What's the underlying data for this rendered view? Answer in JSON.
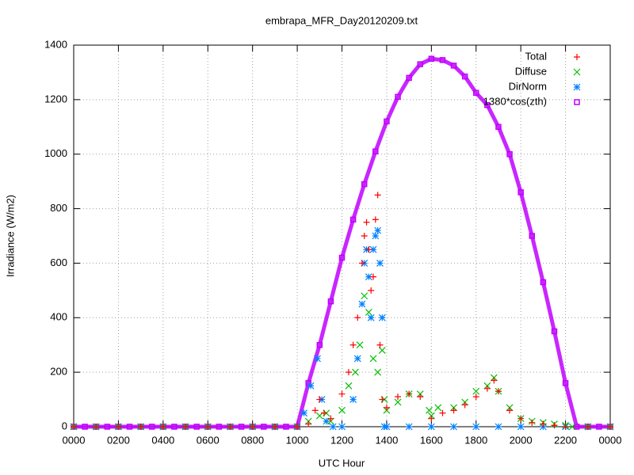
{
  "chart_data": {
    "type": "scatter",
    "title": "embrapa_MFR_Day20120209.txt",
    "xlabel": "UTC Hour",
    "ylabel": "Irradiance (W/m2)",
    "xlim": [
      0,
      24
    ],
    "ylim": [
      0,
      1400
    ],
    "xticks": [
      {
        "value": 0,
        "label": "0000"
      },
      {
        "value": 2,
        "label": "0200"
      },
      {
        "value": 4,
        "label": "0400"
      },
      {
        "value": 6,
        "label": "0600"
      },
      {
        "value": 8,
        "label": "0800"
      },
      {
        "value": 10,
        "label": "1000"
      },
      {
        "value": 12,
        "label": "1200"
      },
      {
        "value": 14,
        "label": "1400"
      },
      {
        "value": 16,
        "label": "1600"
      },
      {
        "value": 18,
        "label": "1800"
      },
      {
        "value": 20,
        "label": "2000"
      },
      {
        "value": 22,
        "label": "2200"
      },
      {
        "value": 24,
        "label": "0000"
      }
    ],
    "yticks": [
      0,
      200,
      400,
      600,
      800,
      1000,
      1200,
      1400
    ],
    "grid": true,
    "legend": "top-right",
    "series": [
      {
        "name": "Total",
        "color": "#ff0000",
        "marker": "plus",
        "x": [
          0,
          1,
          2,
          3,
          4,
          5,
          6,
          7,
          8,
          9,
          10,
          10.5,
          10.8,
          11,
          11.2,
          11.5,
          12,
          12.3,
          12.5,
          12.7,
          12.9,
          13.0,
          13.1,
          13.2,
          13.3,
          13.4,
          13.5,
          13.6,
          13.7,
          13.8,
          14,
          14.5,
          15,
          15.5,
          16,
          16.5,
          17,
          17.5,
          18,
          18.5,
          18.8,
          19,
          19.5,
          20,
          20.5,
          21,
          21.5,
          22,
          23,
          24
        ],
        "values": [
          0,
          0,
          0,
          0,
          0,
          0,
          0,
          0,
          0,
          0,
          0,
          10,
          60,
          100,
          50,
          30,
          120,
          200,
          300,
          400,
          600,
          700,
          750,
          650,
          500,
          550,
          760,
          850,
          300,
          100,
          70,
          110,
          120,
          110,
          30,
          50,
          60,
          80,
          110,
          140,
          170,
          130,
          60,
          30,
          15,
          10,
          5,
          0,
          0,
          0
        ]
      },
      {
        "name": "Diffuse",
        "color": "#00c000",
        "marker": "cross",
        "x": [
          0,
          1,
          2,
          3,
          4,
          5,
          6,
          7,
          8,
          9,
          10,
          10.5,
          11,
          11.3,
          11.5,
          12,
          12.3,
          12.6,
          12.8,
          13.0,
          13.2,
          13.4,
          13.6,
          13.8,
          13.9,
          14,
          14.5,
          15,
          15.5,
          15.9,
          16,
          16.3,
          17,
          17.5,
          18,
          18.5,
          18.8,
          19,
          19.5,
          20,
          20.5,
          21,
          21.5,
          22,
          22.3,
          23,
          24
        ],
        "values": [
          0,
          0,
          0,
          0,
          0,
          0,
          0,
          0,
          0,
          0,
          0,
          20,
          40,
          50,
          20,
          60,
          150,
          200,
          300,
          480,
          420,
          250,
          200,
          280,
          100,
          60,
          90,
          120,
          120,
          60,
          40,
          70,
          70,
          90,
          130,
          150,
          180,
          130,
          70,
          30,
          20,
          15,
          10,
          5,
          0,
          0,
          0
        ]
      },
      {
        "name": "DirNorm",
        "color": "#0080ff",
        "marker": "star",
        "x": [
          0,
          1,
          2,
          3,
          4,
          5,
          6,
          7,
          8,
          9,
          10,
          10.3,
          10.6,
          10.9,
          11.1,
          11.3,
          11.6,
          12,
          12.5,
          12.7,
          12.9,
          13.0,
          13.1,
          13.2,
          13.3,
          13.4,
          13.5,
          13.6,
          13.7,
          13.8,
          13.9,
          14,
          15,
          16,
          17,
          18,
          19,
          20,
          21,
          22,
          23,
          24
        ],
        "values": [
          0,
          0,
          0,
          0,
          0,
          0,
          0,
          0,
          0,
          0,
          0,
          50,
          150,
          250,
          100,
          20,
          0,
          0,
          100,
          250,
          450,
          600,
          650,
          550,
          400,
          650,
          700,
          720,
          600,
          400,
          0,
          0,
          0,
          0,
          0,
          0,
          0,
          0,
          0,
          0,
          0,
          0
        ]
      },
      {
        "name": "1380*cos(zth)",
        "color": "#c000ff",
        "marker": "square",
        "x": [
          0,
          0.5,
          1,
          1.5,
          2,
          2.5,
          3,
          3.5,
          4,
          4.5,
          5,
          5.5,
          6,
          6.5,
          7,
          7.5,
          8,
          8.5,
          9,
          9.5,
          10,
          10.5,
          11,
          11.5,
          12,
          12.5,
          13,
          13.5,
          14,
          14.5,
          15,
          15.5,
          16,
          16.5,
          17,
          17.5,
          18,
          18.5,
          19,
          19.5,
          20,
          20.5,
          21,
          21.5,
          22,
          22.5,
          23,
          23.5,
          24
        ],
        "values": [
          0,
          0,
          0,
          0,
          0,
          0,
          0,
          0,
          0,
          0,
          0,
          0,
          0,
          0,
          0,
          0,
          0,
          0,
          0,
          0,
          0,
          160,
          300,
          460,
          620,
          760,
          890,
          1010,
          1120,
          1210,
          1280,
          1330,
          1350,
          1345,
          1325,
          1285,
          1225,
          1180,
          1100,
          1000,
          860,
          700,
          530,
          350,
          160,
          0,
          0,
          0,
          0
        ]
      }
    ]
  }
}
